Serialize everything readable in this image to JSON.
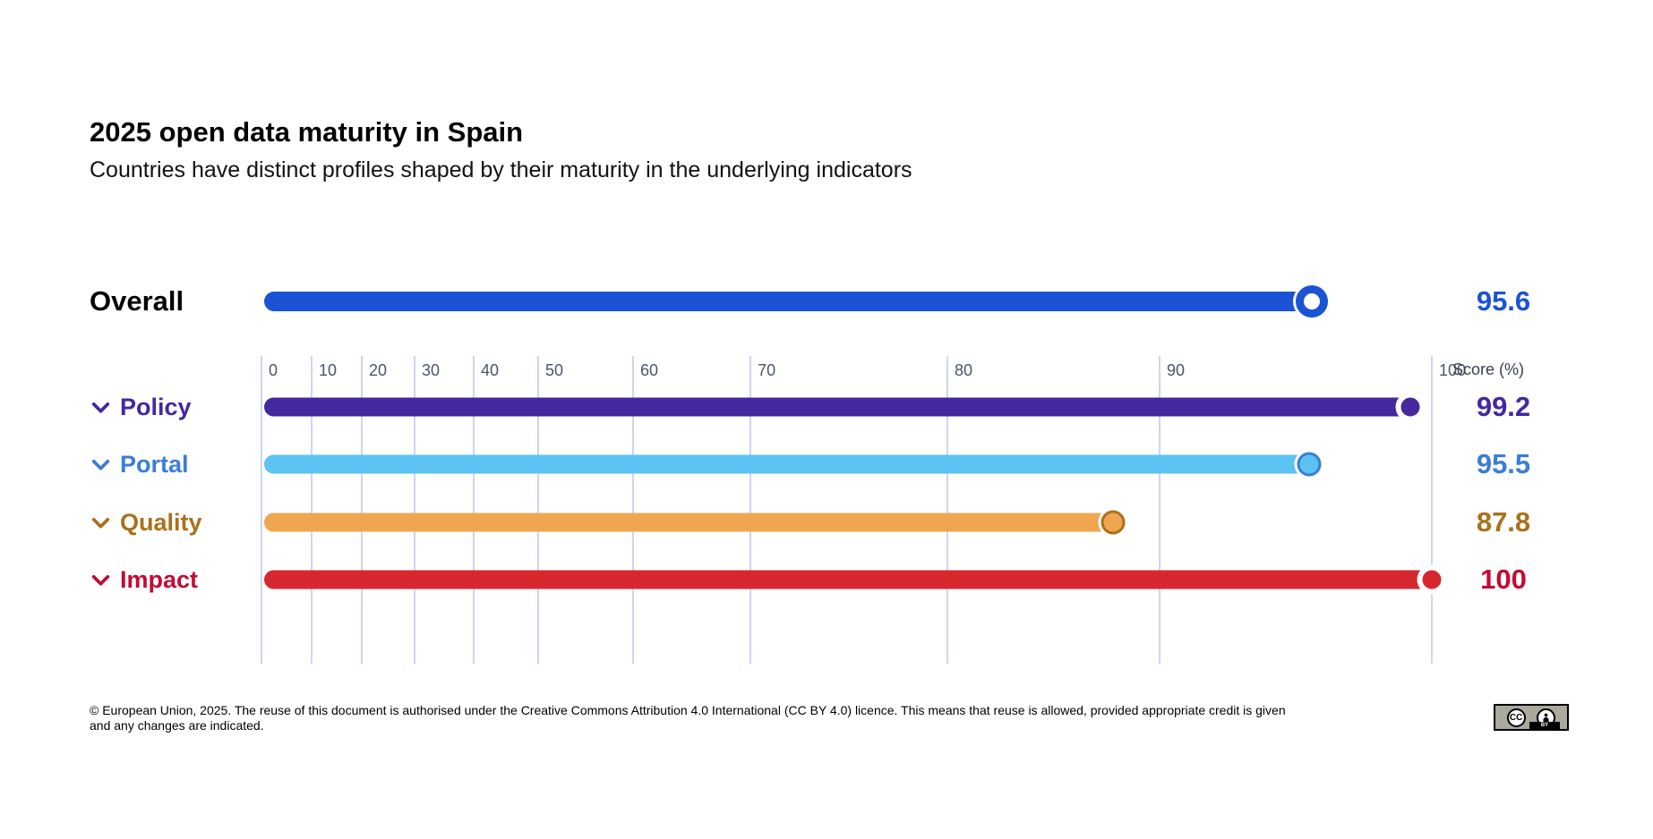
{
  "title": "2025 open data maturity in Spain",
  "subtitle": "Countries have distinct profiles shaped by their maturity in the underlying indicators",
  "axis": {
    "label": "Score (%)",
    "ticks": [
      "0",
      "10",
      "20",
      "30",
      "40",
      "50",
      "60",
      "70",
      "80",
      "90",
      "100"
    ],
    "tick_values": [
      0,
      10,
      20,
      30,
      40,
      50,
      60,
      70,
      80,
      90,
      100
    ],
    "tick_percents": [
      0,
      4.28,
      8.57,
      13.08,
      18.13,
      23.64,
      31.75,
      41.78,
      58.61,
      76.74,
      100
    ],
    "gridline_color": "#CBD6EF",
    "tick_color": "#4A5568"
  },
  "chart_data": {
    "type": "bar",
    "orientation": "horizontal",
    "title": "2025 open data maturity in Spain",
    "subtitle": "Countries have distinct profiles shaped by their maturity in the underlying indicators",
    "categories": [
      "Overall",
      "Policy",
      "Portal",
      "Quality",
      "Impact"
    ],
    "values": [
      95.6,
      99.2,
      95.5,
      87.8,
      100
    ],
    "xlabel": "Score (%)",
    "xlim": [
      0,
      100
    ],
    "x_ticks": [
      0,
      10,
      20,
      30,
      40,
      50,
      60,
      70,
      80,
      90,
      100
    ],
    "grid": true,
    "legend": false,
    "scale_note": "x axis is non-linear; gridline spacing widens toward 100 per tick_percents"
  },
  "overall": {
    "label": "Overall",
    "value": 95.6,
    "value_display": "95.6",
    "bar_color": "#1A53D4",
    "value_color": "#1A53D4"
  },
  "rows": [
    {
      "id": "policy",
      "label": "Policy",
      "value": 99.2,
      "value_display": "99.2",
      "bar_color": "#4527A0",
      "accent_color": "#4527A0",
      "marker_ring": "#FFFFFF"
    },
    {
      "id": "portal",
      "label": "Portal",
      "value": 95.5,
      "value_display": "95.5",
      "bar_color": "#5BC2F1",
      "accent_color": "#3B7DD8",
      "marker_ring": "#3B7DD8"
    },
    {
      "id": "quality",
      "label": "Quality",
      "value": 87.8,
      "value_display": "87.8",
      "bar_color": "#F0A650",
      "accent_color": "#A9711C",
      "marker_ring": "#A9711C"
    },
    {
      "id": "impact",
      "label": "Impact",
      "value": 100,
      "value_display": "100",
      "bar_color": "#D7282F",
      "accent_color": "#C30B33",
      "marker_ring": "#FFFFFF"
    }
  ],
  "footer": {
    "text": "© European Union, 2025. The reuse of this document is authorised under the Creative Commons Attribution 4.0 International (CC BY 4.0) licence. This means that reuse is allowed, provided appropriate credit is given and any changes are indicated.",
    "license_badge": {
      "cc_label": "CC",
      "by_label": "BY"
    }
  }
}
